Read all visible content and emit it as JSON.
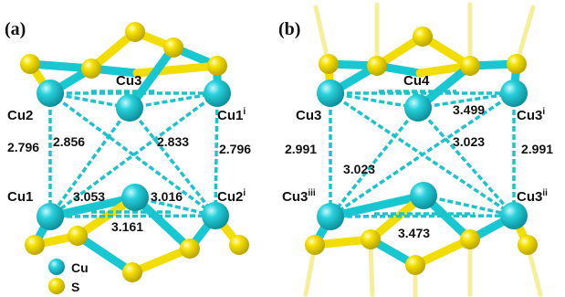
{
  "panel_a": {
    "label": "(a)",
    "atoms": {
      "cu3": "Cu3",
      "cu2": "Cu2",
      "cu1i_base": "Cu1",
      "cu1i_sup": "i",
      "cu1": "Cu1",
      "cu2i_base": "Cu2",
      "cu2i_sup": "i"
    },
    "distances": {
      "left_vertical": "2.796",
      "left_diagonal": "2.856",
      "right_diagonal": "2.833",
      "right_vertical": "2.796",
      "bottom_left": "3.053",
      "bottom_right": "3.016",
      "bottom": "3.161"
    }
  },
  "panel_b": {
    "label": "(b)",
    "atoms": {
      "cu4": "Cu4",
      "cu3": "Cu3",
      "cu3i_base": "Cu3",
      "cu3i_sup": "i",
      "cu3iii_base": "Cu3",
      "cu3iii_sup": "iii",
      "cu3ii_base": "Cu3",
      "cu3ii_sup": "ii"
    },
    "distances": {
      "top_right": "3.499",
      "left_vertical": "2.991",
      "right_diagonal": "3.023",
      "left_diagonal": "3.023",
      "right_vertical": "2.991",
      "bottom": "3.473"
    }
  },
  "legend": {
    "cu_label": "Cu",
    "s_label": "S",
    "cu_color": "#17c7d2",
    "s_color": "#f2dd00"
  }
}
